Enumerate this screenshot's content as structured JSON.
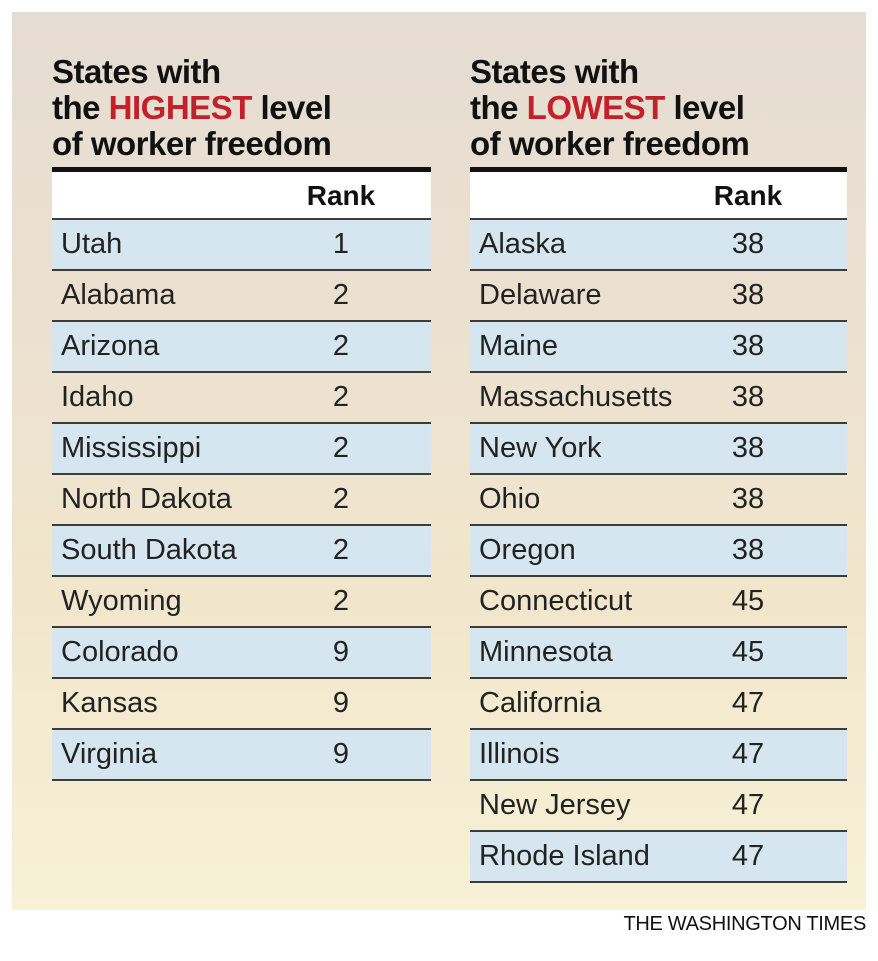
{
  "chart_data": {
    "type": "table",
    "tables": [
      {
        "heading_parts": [
          "States with",
          "the ",
          "HIGHEST",
          " level",
          "of worker freedom"
        ],
        "column_headers": [
          "",
          "Rank"
        ],
        "rows": [
          {
            "state": "Utah",
            "rank": "1"
          },
          {
            "state": "Alabama",
            "rank": "2"
          },
          {
            "state": "Arizona",
            "rank": "2"
          },
          {
            "state": "Idaho",
            "rank": "2"
          },
          {
            "state": "Mississippi",
            "rank": "2"
          },
          {
            "state": "North Dakota",
            "rank": "2"
          },
          {
            "state": "South Dakota",
            "rank": "2"
          },
          {
            "state": "Wyoming",
            "rank": "2"
          },
          {
            "state": "Colorado",
            "rank": "9"
          },
          {
            "state": "Kansas",
            "rank": "9"
          },
          {
            "state": "Virginia",
            "rank": "9"
          }
        ]
      },
      {
        "heading_parts": [
          "States with",
          "the ",
          "LOWEST",
          " level",
          "of worker freedom"
        ],
        "column_headers": [
          "",
          "Rank"
        ],
        "rows": [
          {
            "state": "Alaska",
            "rank": "38"
          },
          {
            "state": "Delaware",
            "rank": "38"
          },
          {
            "state": "Maine",
            "rank": "38"
          },
          {
            "state": "Massachusetts",
            "rank": "38"
          },
          {
            "state": "New York",
            "rank": "38"
          },
          {
            "state": "Ohio",
            "rank": "38"
          },
          {
            "state": "Oregon",
            "rank": "38"
          },
          {
            "state": "Connecticut",
            "rank": "45"
          },
          {
            "state": "Minnesota",
            "rank": "45"
          },
          {
            "state": "California",
            "rank": "47"
          },
          {
            "state": "Illinois",
            "rank": "47"
          },
          {
            "state": "New Jersey",
            "rank": "47"
          },
          {
            "state": "Rhode Island",
            "rank": "47"
          }
        ]
      }
    ]
  },
  "credit": "THE WASHINGTON TIMES",
  "colors": {
    "highlight": "#c3202a",
    "row_shade": "#d6e6f0",
    "rule": "#111111"
  }
}
